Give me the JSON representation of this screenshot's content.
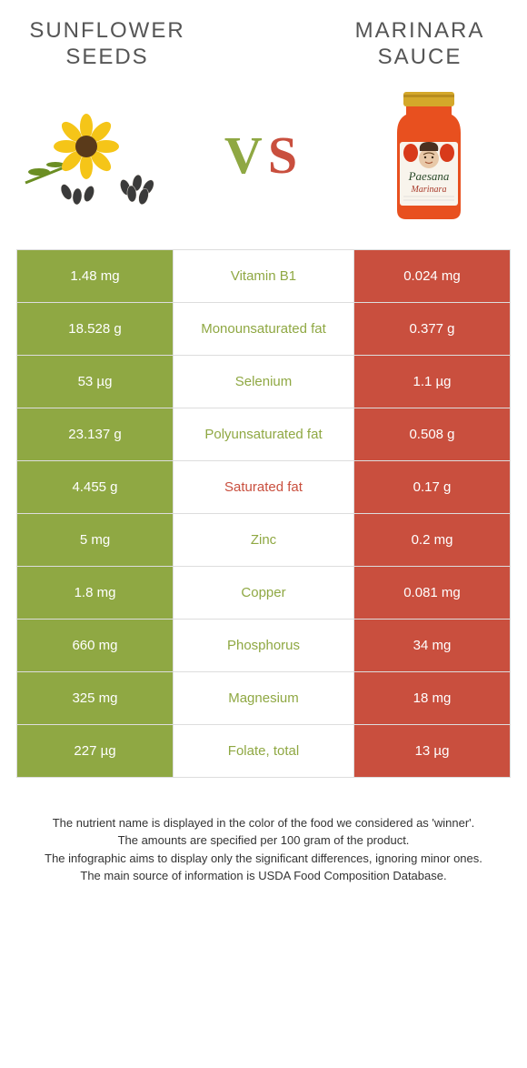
{
  "left_food": "SUNFLOWER SEEDS",
  "right_food": "MARINARA SAUCE",
  "vs": {
    "v": "V",
    "s": "S"
  },
  "colors": {
    "left": "#8fa843",
    "right": "#c94f3e",
    "row_border": "#dddddd",
    "mid_green": "#8fa843",
    "mid_red": "#c94f3e"
  },
  "rows": [
    {
      "left": "1.48 mg",
      "nutrient": "Vitamin B1",
      "right": "0.024 mg",
      "winner": "left"
    },
    {
      "left": "18.528 g",
      "nutrient": "Monounsaturated fat",
      "right": "0.377 g",
      "winner": "left"
    },
    {
      "left": "53 µg",
      "nutrient": "Selenium",
      "right": "1.1 µg",
      "winner": "left"
    },
    {
      "left": "23.137 g",
      "nutrient": "Polyunsaturated fat",
      "right": "0.508 g",
      "winner": "left"
    },
    {
      "left": "4.455 g",
      "nutrient": "Saturated fat",
      "right": "0.17 g",
      "winner": "right"
    },
    {
      "left": "5 mg",
      "nutrient": "Zinc",
      "right": "0.2 mg",
      "winner": "left"
    },
    {
      "left": "1.8 mg",
      "nutrient": "Copper",
      "right": "0.081 mg",
      "winner": "left"
    },
    {
      "left": "660 mg",
      "nutrient": "Phosphorus",
      "right": "34 mg",
      "winner": "left"
    },
    {
      "left": "325 mg",
      "nutrient": "Magnesium",
      "right": "18 mg",
      "winner": "left"
    },
    {
      "left": "227 µg",
      "nutrient": "Folate, total",
      "right": "13 µg",
      "winner": "left"
    }
  ],
  "footnotes": [
    "The nutrient name is displayed in the color of the food we considered as 'winner'.",
    "The amounts are specified per 100 gram of the product.",
    "The infographic aims to display only the significant differences, ignoring minor ones.",
    "The main source of information is USDA Food Composition Database."
  ],
  "jar_label": {
    "brand": "Paesana",
    "type": "Marinara"
  }
}
